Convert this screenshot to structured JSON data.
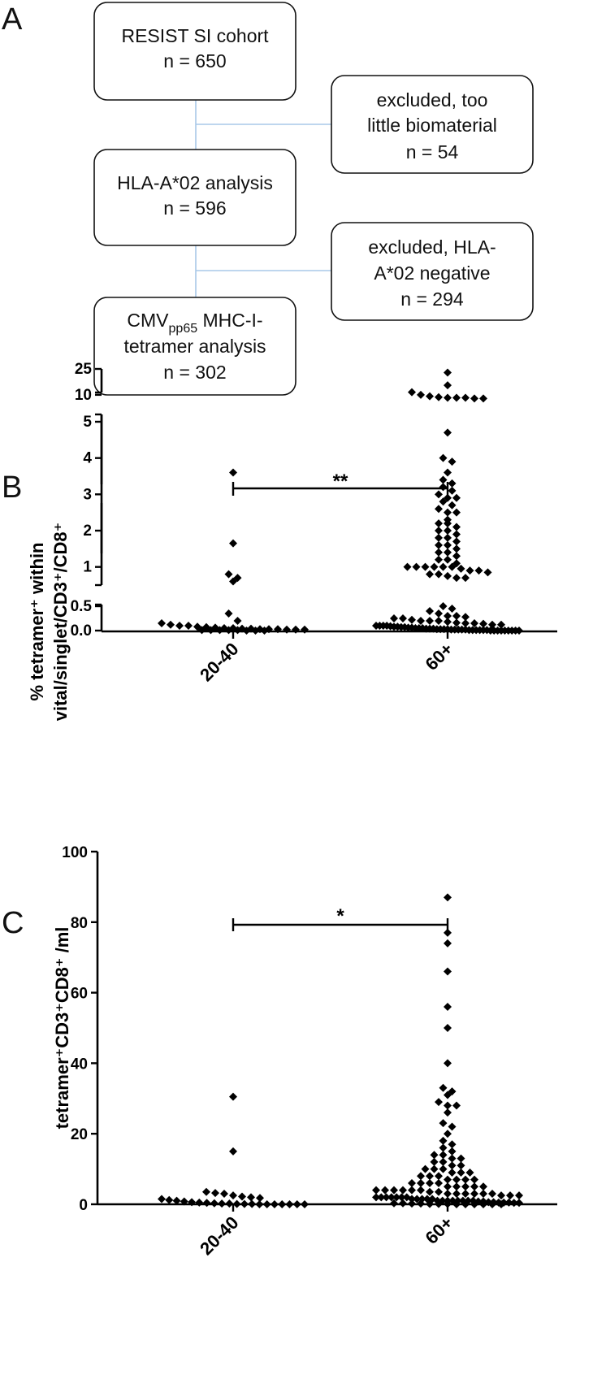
{
  "panel_labels": {
    "a": "A",
    "b": "B",
    "c": "C"
  },
  "flowchart": {
    "cohort": {
      "line1": "RESIST SI cohort",
      "line2": "n = 650"
    },
    "excl1": {
      "line1": "excluded, too",
      "line2": "little biomaterial",
      "line3": "n = 54"
    },
    "hla": {
      "line1": "HLA-A*02 analysis",
      "line2": "n = 596"
    },
    "excl2": {
      "line1": "excluded, HLA-",
      "line2": "A*02 negative",
      "line3": "n = 294"
    },
    "tetramer": {
      "line1_pre": "CMV",
      "line1_sub": "pp65",
      "line1_post": " MHC-I-",
      "line2": "tetramer analysis",
      "line3": "n = 302"
    }
  },
  "chart_data": [
    {
      "type": "scatter",
      "panel": "B",
      "ylabel_line1": "% tetramer⁺ within",
      "ylabel_line2": "vital/singlet/CD3⁺/CD8⁺",
      "categories": [
        "20-40",
        "60+"
      ],
      "y_axis_segments": [
        {
          "range": [
            0,
            0.5
          ],
          "ticks": [
            "0.0",
            "0.5"
          ]
        },
        {
          "range": [
            0.5,
            5
          ],
          "ticks": [
            "1",
            "2",
            "3",
            "4",
            "5"
          ]
        },
        {
          "range": [
            5,
            25
          ],
          "ticks": [
            "10",
            "25"
          ]
        }
      ],
      "significance": "**",
      "series": [
        {
          "name": "20-40",
          "values": [
            3.6,
            1.65,
            0.8,
            0.7,
            0.6,
            0.35,
            0.2,
            0.15,
            0.12,
            0.1,
            0.1,
            0.08,
            0.07,
            0.06,
            0.05,
            0.05,
            0.04,
            0.04,
            0.03,
            0.03,
            0.03,
            0.02,
            0.02,
            0.02,
            0.01,
            0.01,
            0.01,
            0.01,
            0.01,
            0.0,
            0.0,
            0.0
          ]
        },
        {
          "name": "60+",
          "values": [
            22,
            14,
            11,
            10,
            9.5,
            9.2,
            9,
            9,
            9,
            8.8,
            8.8,
            4.7,
            4.0,
            3.9,
            3.6,
            3.4,
            3.3,
            3.2,
            3.1,
            3.0,
            2.9,
            2.9,
            2.8,
            2.7,
            2.6,
            2.5,
            2.5,
            2.3,
            2.2,
            2.2,
            2.1,
            2.0,
            2.0,
            1.9,
            1.8,
            1.8,
            1.7,
            1.6,
            1.6,
            1.5,
            1.4,
            1.4,
            1.3,
            1.2,
            1.2,
            1.1,
            1.0,
            1.0,
            1.0,
            1.0,
            1.0,
            1.0,
            0.95,
            0.9,
            0.9,
            0.85,
            0.8,
            0.8,
            0.75,
            0.7,
            0.7,
            0.5,
            0.45,
            0.4,
            0.35,
            0.3,
            0.3,
            0.28,
            0.25,
            0.25,
            0.22,
            0.2,
            0.2,
            0.2,
            0.18,
            0.16,
            0.15,
            0.15,
            0.14,
            0.12,
            0.12,
            0.1,
            0.1,
            0.1,
            0.1,
            0.09,
            0.08,
            0.08,
            0.07,
            0.07,
            0.06,
            0.06,
            0.05,
            0.05,
            0.05,
            0.04,
            0.04,
            0.04,
            0.03,
            0.03,
            0.03,
            0.03,
            0.02,
            0.02,
            0.02,
            0.02,
            0.02,
            0.01,
            0.01,
            0.01,
            0.01,
            0.01,
            0.01,
            0.0,
            0.0,
            0.0,
            0.0,
            0.0,
            0.0,
            0.0,
            0.0,
            0.0
          ]
        }
      ]
    },
    {
      "type": "scatter",
      "panel": "C",
      "ylabel": "tetramer⁺CD3⁺CD8⁺ /ml",
      "categories": [
        "20-40",
        "60+"
      ],
      "ylim": [
        0,
        100
      ],
      "yticks": [
        "0",
        "20",
        "40",
        "60",
        "80",
        "100"
      ],
      "significance": "*",
      "series": [
        {
          "name": "20-40",
          "values": [
            30.5,
            15,
            3.5,
            3.2,
            3,
            2.5,
            2.2,
            2,
            1.8,
            1.5,
            1.2,
            1,
            0.8,
            0.6,
            0.5,
            0.4,
            0.3,
            0.2,
            0.2,
            0.1,
            0.1,
            0.1,
            0,
            0,
            0,
            0,
            0,
            0,
            0
          ]
        },
        {
          "name": "60+",
          "values": [
            87,
            77,
            74,
            66,
            56,
            50,
            40,
            33,
            32,
            31,
            29,
            28,
            28,
            26,
            23,
            22,
            20,
            18,
            17,
            16,
            15,
            14,
            14,
            13,
            13,
            12,
            12,
            11,
            11,
            10,
            10,
            10,
            9,
            9,
            9,
            8,
            8,
            8,
            7,
            7,
            7,
            7,
            6,
            6,
            6,
            6,
            5,
            5,
            5,
            5,
            5,
            4,
            4,
            4,
            4,
            4,
            4,
            3.5,
            3.5,
            3,
            3,
            3,
            3,
            3,
            3,
            2.5,
            2.5,
            2.5,
            2,
            2,
            2,
            2,
            2,
            2,
            2,
            1.5,
            1.5,
            1.5,
            1.5,
            1.5,
            1,
            1,
            1,
            1,
            1,
            1,
            1,
            1,
            0.8,
            0.8,
            0.6,
            0.6,
            0.5,
            0.5,
            0.5,
            0.4,
            0.4,
            0.3,
            0.3,
            0.2,
            0.2,
            0.1,
            0.1,
            0.1,
            0,
            0,
            0,
            0,
            0,
            0
          ]
        }
      ]
    }
  ]
}
